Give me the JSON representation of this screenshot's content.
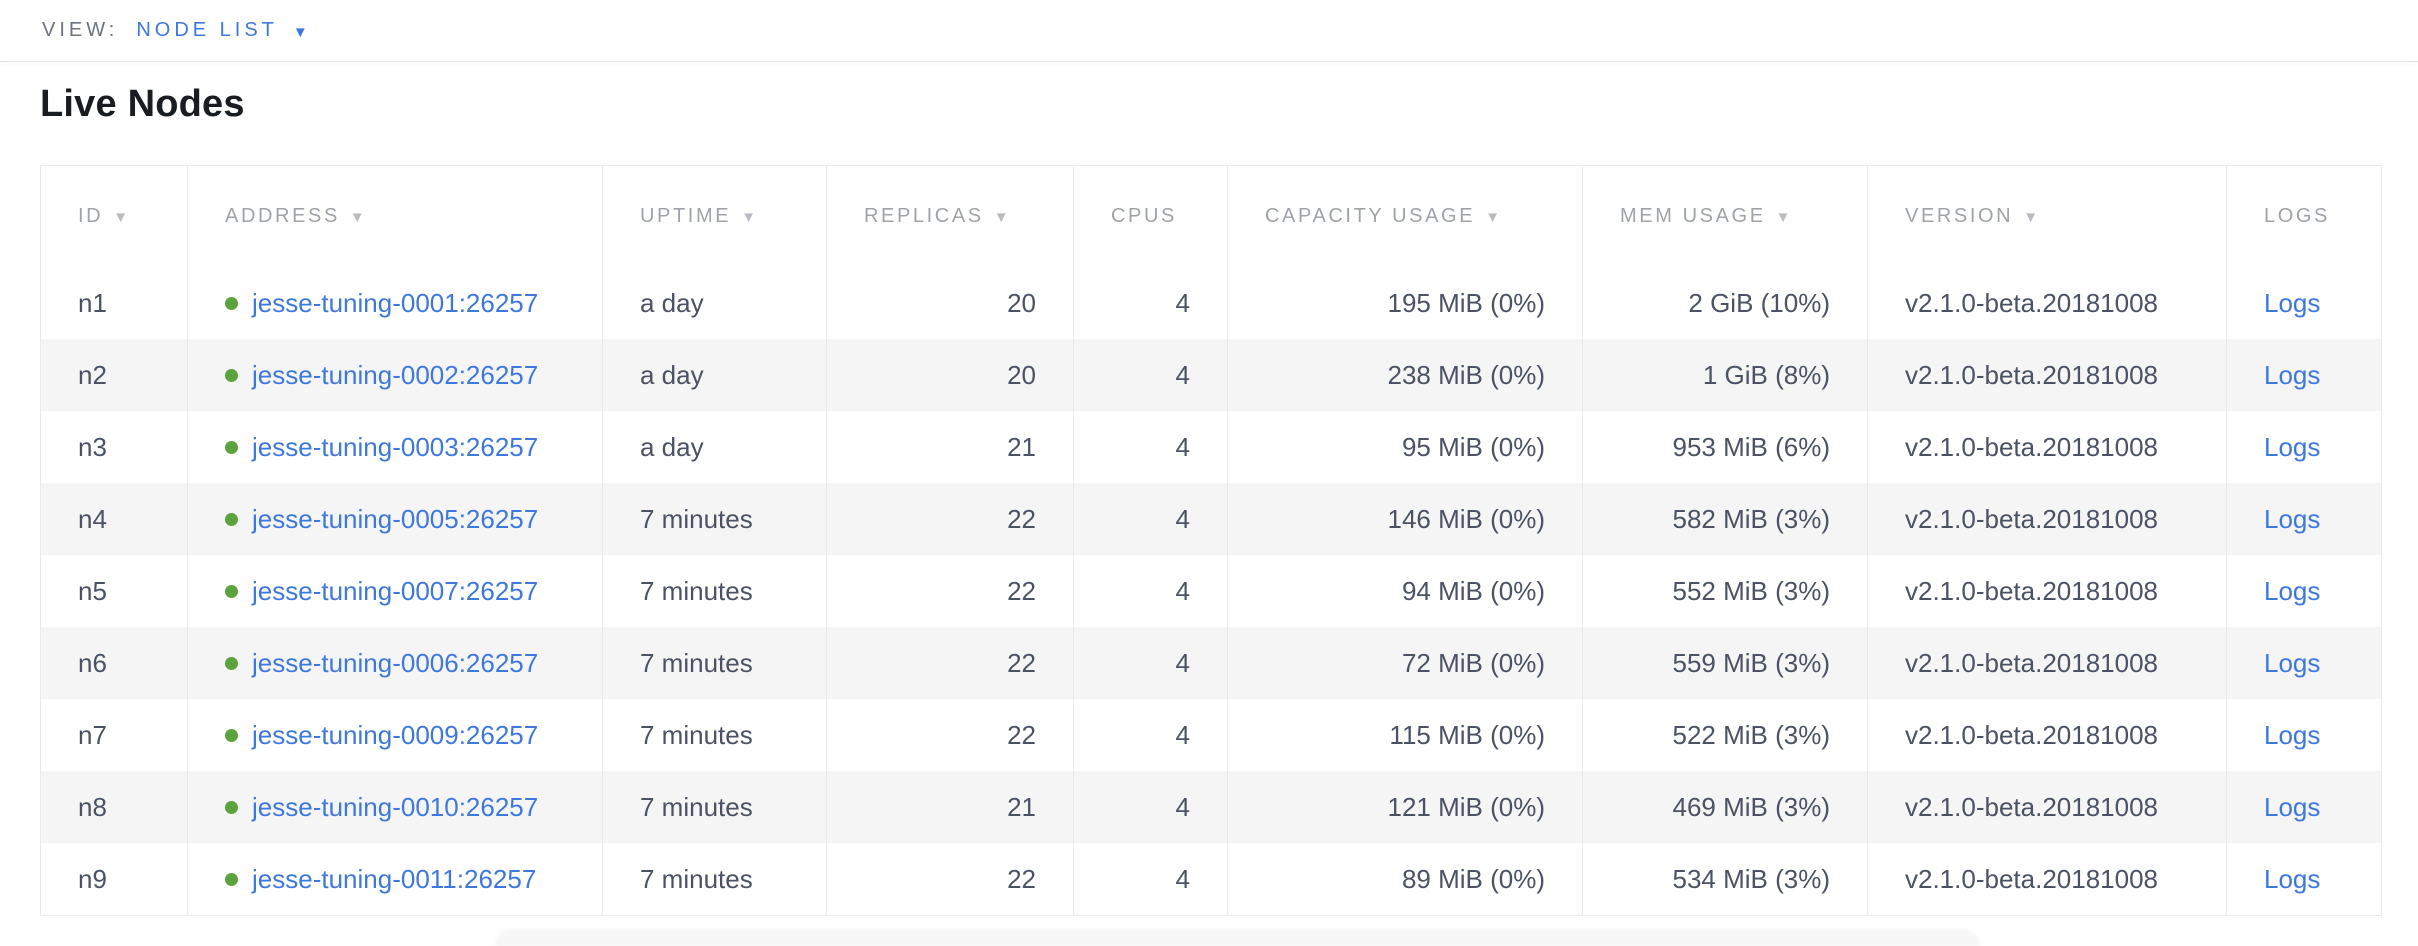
{
  "view_bar": {
    "label": "VIEW:",
    "selected_view": "NODE LIST",
    "caret_icon": "▼"
  },
  "page": {
    "title": "Live Nodes"
  },
  "colors": {
    "accent_blue": "#3e78de",
    "live_green": "#5ba33c",
    "header_gray": "#9fa3a9",
    "cell_text": "#4a5264",
    "alt_row_bg": "#f5f5f6"
  },
  "table": {
    "columns": [
      {
        "label": "ID",
        "arrow": "▼",
        "sortable": true
      },
      {
        "label": "ADDRESS",
        "arrow": "▼",
        "sortable": true
      },
      {
        "label": "UPTIME",
        "arrow": "▼",
        "sortable": true
      },
      {
        "label": "REPLICAS",
        "arrow": "▼",
        "sortable": true
      },
      {
        "label": "CPUS",
        "arrow": "",
        "sortable": false
      },
      {
        "label": "CAPACITY USAGE",
        "arrow": "▼",
        "sortable": true
      },
      {
        "label": "MEM USAGE",
        "arrow": "▼",
        "sortable": true
      },
      {
        "label": "VERSION",
        "arrow": "▼",
        "sortable": true
      },
      {
        "label": "LOGS",
        "arrow": "",
        "sortable": false
      }
    ],
    "rows": [
      {
        "id": "n1",
        "status": "live",
        "address": "jesse-tuning-0001:26257",
        "uptime": "a day",
        "replicas": "20",
        "cpus": "4",
        "capacity_usage": "195 MiB (0%)",
        "mem_usage": "2 GiB (10%)",
        "version": "v2.1.0-beta.20181008",
        "logs_label": "Logs"
      },
      {
        "id": "n2",
        "status": "live",
        "address": "jesse-tuning-0002:26257",
        "uptime": "a day",
        "replicas": "20",
        "cpus": "4",
        "capacity_usage": "238 MiB (0%)",
        "mem_usage": "1 GiB (8%)",
        "version": "v2.1.0-beta.20181008",
        "logs_label": "Logs"
      },
      {
        "id": "n3",
        "status": "live",
        "address": "jesse-tuning-0003:26257",
        "uptime": "a day",
        "replicas": "21",
        "cpus": "4",
        "capacity_usage": "95 MiB (0%)",
        "mem_usage": "953 MiB (6%)",
        "version": "v2.1.0-beta.20181008",
        "logs_label": "Logs"
      },
      {
        "id": "n4",
        "status": "live",
        "address": "jesse-tuning-0005:26257",
        "uptime": "7 minutes",
        "replicas": "22",
        "cpus": "4",
        "capacity_usage": "146 MiB (0%)",
        "mem_usage": "582 MiB (3%)",
        "version": "v2.1.0-beta.20181008",
        "logs_label": "Logs"
      },
      {
        "id": "n5",
        "status": "live",
        "address": "jesse-tuning-0007:26257",
        "uptime": "7 minutes",
        "replicas": "22",
        "cpus": "4",
        "capacity_usage": "94 MiB (0%)",
        "mem_usage": "552 MiB (3%)",
        "version": "v2.1.0-beta.20181008",
        "logs_label": "Logs"
      },
      {
        "id": "n6",
        "status": "live",
        "address": "jesse-tuning-0006:26257",
        "uptime": "7 minutes",
        "replicas": "22",
        "cpus": "4",
        "capacity_usage": "72 MiB (0%)",
        "mem_usage": "559 MiB (3%)",
        "version": "v2.1.0-beta.20181008",
        "logs_label": "Logs"
      },
      {
        "id": "n7",
        "status": "live",
        "address": "jesse-tuning-0009:26257",
        "uptime": "7 minutes",
        "replicas": "22",
        "cpus": "4",
        "capacity_usage": "115 MiB (0%)",
        "mem_usage": "522 MiB (3%)",
        "version": "v2.1.0-beta.20181008",
        "logs_label": "Logs"
      },
      {
        "id": "n8",
        "status": "live",
        "address": "jesse-tuning-0010:26257",
        "uptime": "7 minutes",
        "replicas": "21",
        "cpus": "4",
        "capacity_usage": "121 MiB (0%)",
        "mem_usage": "469 MiB (3%)",
        "version": "v2.1.0-beta.20181008",
        "logs_label": "Logs"
      },
      {
        "id": "n9",
        "status": "live",
        "address": "jesse-tuning-0011:26257",
        "uptime": "7 minutes",
        "replicas": "22",
        "cpus": "4",
        "capacity_usage": "89 MiB (0%)",
        "mem_usage": "534 MiB (3%)",
        "version": "v2.1.0-beta.20181008",
        "logs_label": "Logs"
      }
    ]
  }
}
